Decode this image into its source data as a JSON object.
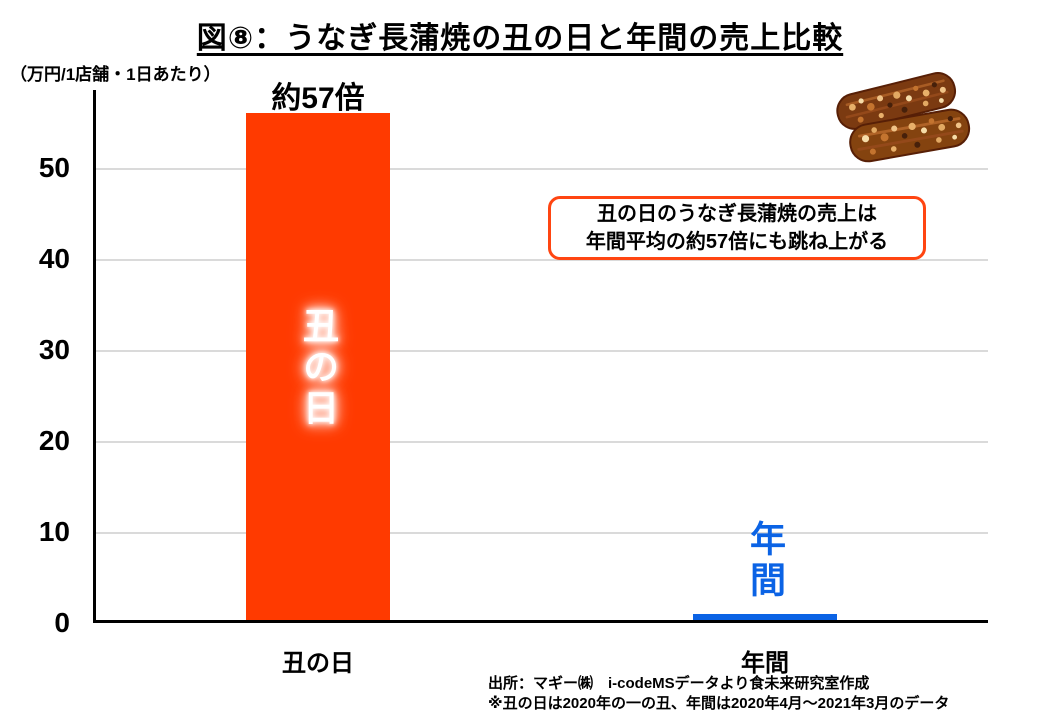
{
  "header": {
    "title": "図⑧：うなぎ長蒲焼の丑の日と年間の売上比較"
  },
  "labels": {
    "bar1_top_label": "約57倍",
    "bar1_inner_label": "丑の日",
    "bar2_above_label": "年間"
  },
  "callout": {
    "line1": "丑の日のうなぎ長蒲焼の売上は",
    "line2": "年間平均の約57倍にも跳ね上がる"
  },
  "footer": {
    "source_line": "出所：マギー㈱　i-codeMSデータより食未来研究室作成",
    "note_line": "※丑の日は2020年の一の丑、年間は2020年4月～2021年3月のデータ"
  },
  "icons": {
    "eel_illustration": "grilled-eel-kabayaki-fillets"
  },
  "colors": {
    "bar_ushinohi": "#FF3A00",
    "bar_annual": "#0B63E5",
    "annual_label_blue": "#0B63E5",
    "callout_border": "#FF4511",
    "gridline": "#DADADA",
    "axis": "#000000"
  },
  "chart_data": {
    "type": "bar",
    "title": "図⑧：うなぎ長蒲焼の丑の日と年間の売上比較",
    "ylabel": "（万円/1店舗・1日あたり）",
    "xlabel": "",
    "categories": [
      "丑の日",
      "年間"
    ],
    "values": [
      56,
      1
    ],
    "bar_colors": [
      "#FF3A00",
      "#0B63E5"
    ],
    "yticks": [
      0,
      10,
      20,
      30,
      40,
      50
    ],
    "ylim": [
      0,
      58
    ],
    "grid": true,
    "legend": "none",
    "annotations": [
      "約57倍",
      "丑の日のうなぎ長蒲焼の売上は年間平均の約57倍にも跳ね上がる",
      "出所：マギー㈱　i-codeMSデータより食未来研究室作成",
      "※丑の日は2020年の一の丑、年間は2020年4月～2021年3月のデータ"
    ]
  }
}
